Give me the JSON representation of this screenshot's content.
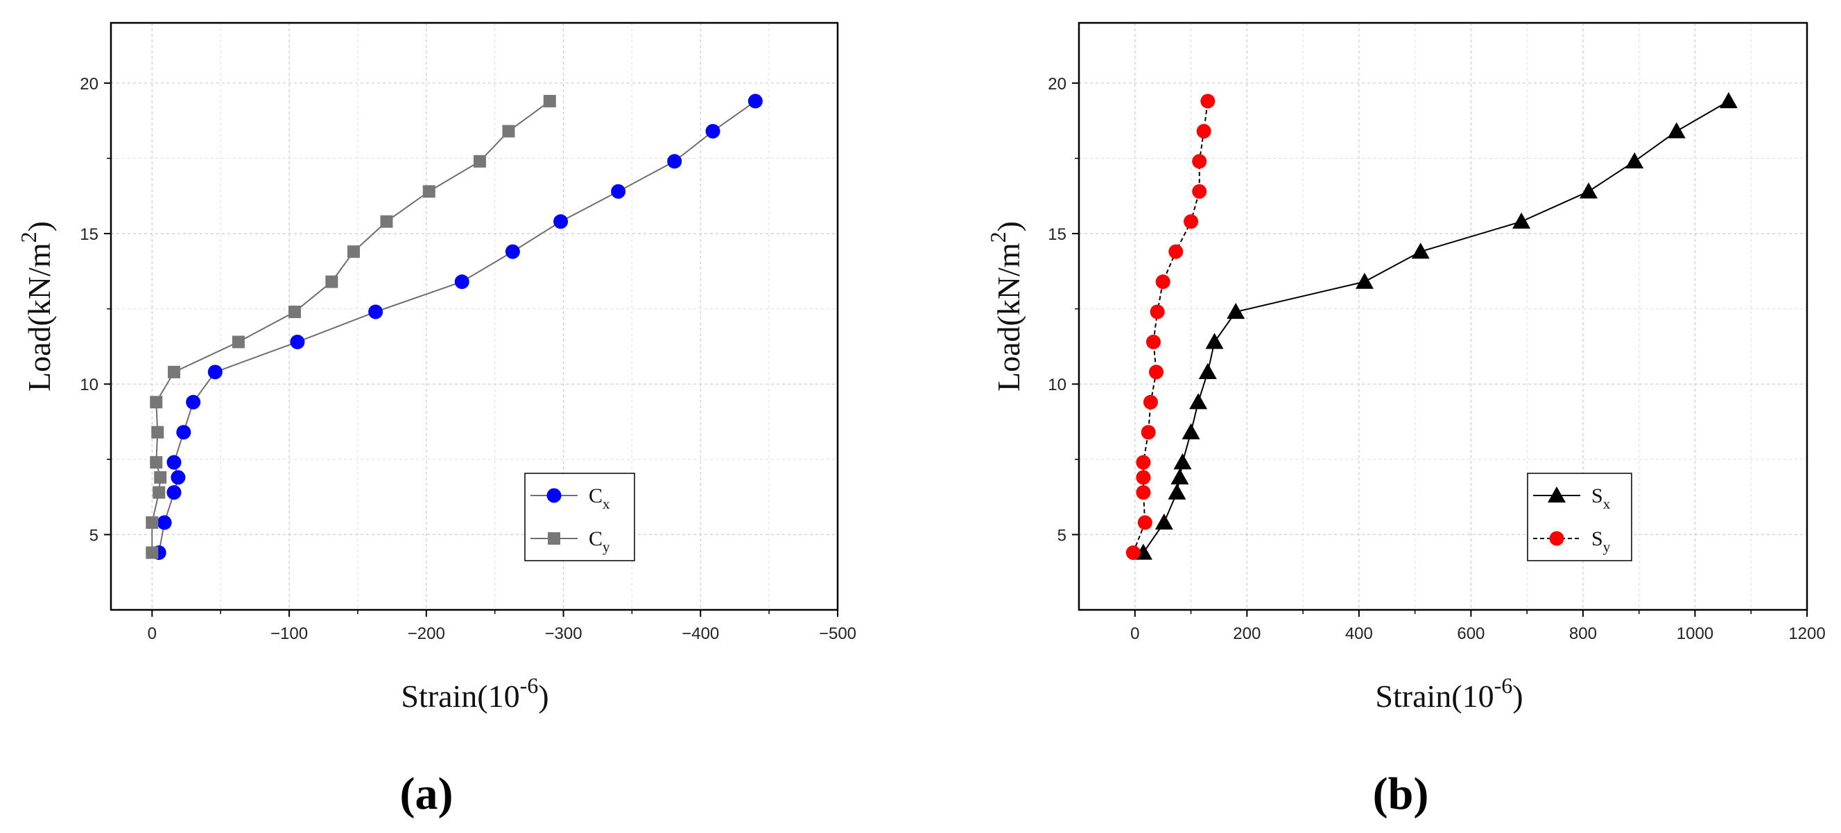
{
  "chart_data": [
    {
      "type": "line",
      "panel_label": "a",
      "xlabel": "Strain(10",
      "xlabel_sup": "-6",
      "xlabel_end": ")",
      "ylabel": "Load(kN/m",
      "ylabel_sup": "2",
      "ylabel_end": ")",
      "xlim": [
        30,
        -500
      ],
      "ylim": [
        2.5,
        22
      ],
      "xticks": [
        0,
        -100,
        -200,
        -300,
        -400,
        -500
      ],
      "xtick_labels": [
        "0",
        "−100",
        "−200",
        "−300",
        "−400",
        "−500"
      ],
      "yticks": [
        5,
        10,
        15,
        20
      ],
      "ytick_labels": [
        "5",
        "10",
        "15",
        "20"
      ],
      "grid": true,
      "legend_position": "lower-right",
      "series": [
        {
          "name": "C",
          "name_sub": "x",
          "color": "#0000ff",
          "line_color": "#6e6e6e",
          "marker": "circle",
          "x": [
            -5,
            -9,
            -16,
            -19,
            -16,
            -23,
            -30,
            -46,
            -106,
            -163,
            -226,
            -263,
            -298,
            -340,
            -381,
            -409,
            -440
          ],
          "y": [
            4.4,
            5.4,
            6.4,
            6.9,
            7.4,
            8.4,
            9.4,
            10.4,
            11.4,
            12.4,
            13.4,
            14.4,
            15.4,
            16.4,
            17.4,
            18.4,
            19.4
          ]
        },
        {
          "name": "C",
          "name_sub": "y",
          "color": "#777777",
          "line_color": "#6e6e6e",
          "marker": "square",
          "x": [
            0,
            0,
            -5,
            -6,
            -3,
            -4,
            -3,
            -16,
            -63,
            -104,
            -131,
            -147,
            -171,
            -202,
            -239,
            -260,
            -290
          ],
          "y": [
            4.4,
            5.4,
            6.4,
            6.9,
            7.4,
            8.4,
            9.4,
            10.4,
            11.4,
            12.4,
            13.4,
            14.4,
            15.4,
            16.4,
            17.4,
            18.4,
            19.4
          ]
        }
      ]
    },
    {
      "type": "line",
      "panel_label": "b",
      "xlabel": "Strain(10",
      "xlabel_sup": "-6",
      "xlabel_end": ")",
      "ylabel": "Load(kN/m",
      "ylabel_sup": "2",
      "ylabel_end": ")",
      "xlim": [
        -100,
        1200
      ],
      "ylim": [
        2.5,
        22
      ],
      "xticks": [
        0,
        200,
        400,
        600,
        800,
        1000,
        1200
      ],
      "xtick_labels": [
        "0",
        "200",
        "400",
        "600",
        "800",
        "1000",
        "1200"
      ],
      "yticks": [
        5,
        10,
        15,
        20
      ],
      "ytick_labels": [
        "5",
        "10",
        "15",
        "20"
      ],
      "grid": true,
      "legend_position": "lower-right",
      "series": [
        {
          "name": "S",
          "name_sub": "x",
          "color": "#000000",
          "line_color": "#000000",
          "marker": "triangle",
          "x": [
            15,
            52,
            75,
            80,
            85,
            100,
            113,
            130,
            142,
            180,
            410,
            510,
            690,
            810,
            892,
            967,
            1060
          ],
          "y": [
            4.4,
            5.4,
            6.4,
            6.9,
            7.4,
            8.4,
            9.4,
            10.4,
            11.4,
            12.4,
            13.4,
            14.4,
            15.4,
            16.4,
            17.4,
            18.4,
            19.4
          ]
        },
        {
          "name": "S",
          "name_sub": "y",
          "color": "#ff0000",
          "line_color": "#000000",
          "marker": "circle",
          "dashed": true,
          "x": [
            -3,
            18,
            15,
            15,
            15,
            24,
            28,
            38,
            33,
            40,
            50,
            73,
            100,
            115,
            115,
            123,
            130
          ],
          "y": [
            4.4,
            5.4,
            6.4,
            6.9,
            7.4,
            8.4,
            9.4,
            10.4,
            11.4,
            12.4,
            13.4,
            14.4,
            15.4,
            16.4,
            17.4,
            18.4,
            19.4
          ]
        }
      ]
    }
  ]
}
